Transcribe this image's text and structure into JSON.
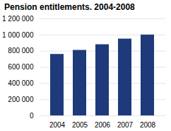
{
  "chart_data": {
    "type": "bar",
    "title": "Pension entitlements. 2004-2008",
    "categories": [
      "2004",
      "2005",
      "2006",
      "2007",
      "2008"
    ],
    "values": [
      760000,
      810000,
      880000,
      950000,
      1000000
    ],
    "color": "#1f3a7a",
    "ylim": [
      0,
      1200000
    ],
    "yticks": [
      0,
      {
        "value": 200000,
        "label": "200 000"
      },
      {
        "value": 400000,
        "label": "400 000"
      },
      {
        "value": 600000,
        "label": "600 000"
      },
      {
        "value": 800000,
        "label": "800 000"
      },
      {
        "value": 1000000,
        "label": "1 000 000"
      },
      {
        "value": 1200000,
        "label": "1 200 000"
      }
    ],
    "grid": true
  }
}
